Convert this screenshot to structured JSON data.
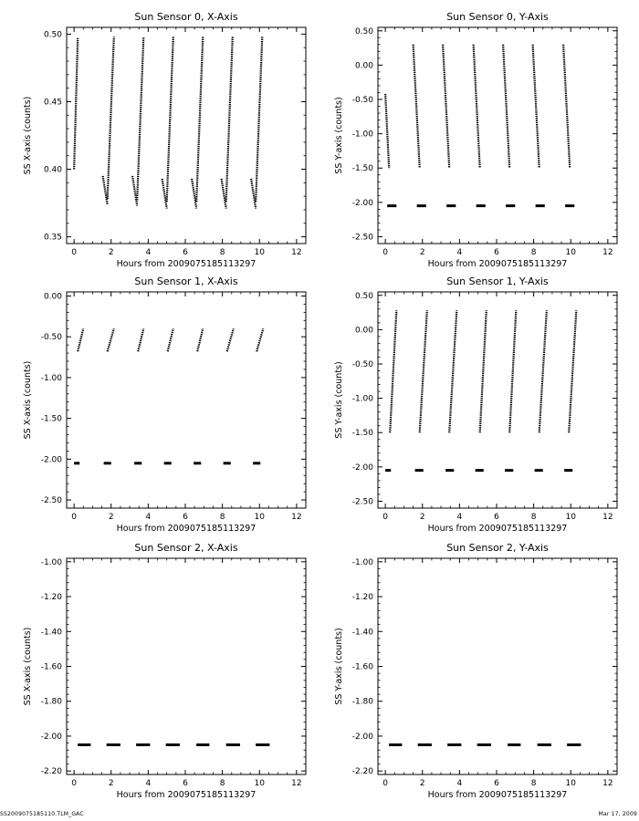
{
  "footer": {
    "filename": "SS2009075185110.TLM_GAC",
    "date": "Mar 17, 2009"
  },
  "chart_data": [
    {
      "type": "scatter",
      "title": "Sun Sensor 0, X-Axis",
      "xlabel": "Hours from 2009075185113297",
      "ylabel": "SS X-axis (counts)",
      "xlim": [
        -0.4,
        12.5
      ],
      "ylim": [
        0.345,
        0.505
      ],
      "xticks": [
        0,
        2,
        4,
        6,
        8,
        10,
        12
      ],
      "yticks": [
        0.35,
        0.4,
        0.45,
        0.5
      ],
      "ytick_labels": [
        "0.35",
        "0.40",
        "0.45",
        "0.50"
      ],
      "segments": [
        {
          "x": [
            0.0,
            0.2
          ],
          "y": [
            0.4,
            0.497
          ]
        },
        {
          "x": [
            1.55,
            1.8
          ],
          "y": [
            0.395,
            0.374
          ]
        },
        {
          "x": [
            1.8,
            2.15
          ],
          "y": [
            0.378,
            0.498
          ]
        },
        {
          "x": [
            3.15,
            3.4
          ],
          "y": [
            0.395,
            0.373
          ]
        },
        {
          "x": [
            3.4,
            3.75
          ],
          "y": [
            0.377,
            0.498
          ]
        },
        {
          "x": [
            4.75,
            5.0
          ],
          "y": [
            0.393,
            0.371
          ]
        },
        {
          "x": [
            5.0,
            5.35
          ],
          "y": [
            0.376,
            0.498
          ]
        },
        {
          "x": [
            6.35,
            6.6
          ],
          "y": [
            0.393,
            0.371
          ]
        },
        {
          "x": [
            6.6,
            6.95
          ],
          "y": [
            0.376,
            0.498
          ]
        },
        {
          "x": [
            7.95,
            8.2
          ],
          "y": [
            0.393,
            0.371
          ]
        },
        {
          "x": [
            8.2,
            8.55
          ],
          "y": [
            0.376,
            0.498
          ]
        },
        {
          "x": [
            9.55,
            9.8
          ],
          "y": [
            0.393,
            0.371
          ]
        },
        {
          "x": [
            9.8,
            10.15
          ],
          "y": [
            0.376,
            0.498
          ]
        }
      ]
    },
    {
      "type": "scatter",
      "title": "Sun Sensor 0, Y-Axis",
      "xlabel": "Hours from 2009075185113297",
      "ylabel": "SS Y-axis (counts)",
      "xlim": [
        -0.4,
        12.5
      ],
      "ylim": [
        -2.6,
        0.55
      ],
      "xticks": [
        0,
        2,
        4,
        6,
        8,
        10,
        12
      ],
      "yticks": [
        -2.5,
        -2.0,
        -1.5,
        -1.0,
        -0.5,
        0.0,
        0.5
      ],
      "ytick_labels": [
        "-2.50",
        "-2.00",
        "-1.50",
        "-1.00",
        "-0.50",
        "0.00",
        "0.50"
      ],
      "segments": [
        {
          "x": [
            0.0,
            0.2
          ],
          "y": [
            -0.42,
            -1.5
          ]
        },
        {
          "x": [
            1.5,
            1.85
          ],
          "y": [
            0.3,
            -1.5
          ]
        },
        {
          "x": [
            3.1,
            3.45
          ],
          "y": [
            0.3,
            -1.5
          ]
        },
        {
          "x": [
            4.75,
            5.1
          ],
          "y": [
            0.3,
            -1.5
          ]
        },
        {
          "x": [
            6.35,
            6.7
          ],
          "y": [
            0.3,
            -1.5
          ]
        },
        {
          "x": [
            7.95,
            8.3
          ],
          "y": [
            0.3,
            -1.5
          ]
        },
        {
          "x": [
            9.6,
            9.95
          ],
          "y": [
            0.3,
            -1.5
          ]
        },
        {
          "x": [
            0.1,
            0.6
          ],
          "y": [
            -2.05,
            -2.05
          ]
        },
        {
          "x": [
            1.7,
            2.2
          ],
          "y": [
            -2.05,
            -2.05
          ]
        },
        {
          "x": [
            3.3,
            3.8
          ],
          "y": [
            -2.05,
            -2.05
          ]
        },
        {
          "x": [
            4.9,
            5.4
          ],
          "y": [
            -2.05,
            -2.05
          ]
        },
        {
          "x": [
            6.5,
            7.0
          ],
          "y": [
            -2.05,
            -2.05
          ]
        },
        {
          "x": [
            8.1,
            8.6
          ],
          "y": [
            -2.05,
            -2.05
          ]
        },
        {
          "x": [
            9.7,
            10.2
          ],
          "y": [
            -2.05,
            -2.05
          ]
        }
      ]
    },
    {
      "type": "scatter",
      "title": "Sun Sensor 1, X-Axis",
      "xlabel": "Hours from 2009075185113297",
      "ylabel": "SS X-axis (counts)",
      "xlim": [
        -0.4,
        12.5
      ],
      "ylim": [
        -2.6,
        0.05
      ],
      "xticks": [
        0,
        2,
        4,
        6,
        8,
        10,
        12
      ],
      "yticks": [
        -2.5,
        -2.0,
        -1.5,
        -1.0,
        -0.5,
        0.0
      ],
      "ytick_labels": [
        "-2.50",
        "-2.00",
        "-1.50",
        "-1.00",
        "-0.50",
        "0.00"
      ],
      "segments": [
        {
          "x": [
            0.2,
            0.5
          ],
          "y": [
            -0.68,
            -0.4
          ]
        },
        {
          "x": [
            1.8,
            2.15
          ],
          "y": [
            -0.68,
            -0.4
          ]
        },
        {
          "x": [
            3.45,
            3.75
          ],
          "y": [
            -0.68,
            -0.4
          ]
        },
        {
          "x": [
            5.05,
            5.35
          ],
          "y": [
            -0.68,
            -0.4
          ]
        },
        {
          "x": [
            6.65,
            6.95
          ],
          "y": [
            -0.68,
            -0.4
          ]
        },
        {
          "x": [
            8.25,
            8.6
          ],
          "y": [
            -0.68,
            -0.4
          ]
        },
        {
          "x": [
            9.85,
            10.2
          ],
          "y": [
            -0.68,
            -0.4
          ]
        },
        {
          "x": [
            0.0,
            0.3
          ],
          "y": [
            -2.05,
            -2.05
          ]
        },
        {
          "x": [
            1.6,
            2.0
          ],
          "y": [
            -2.05,
            -2.05
          ]
        },
        {
          "x": [
            3.25,
            3.65
          ],
          "y": [
            -2.05,
            -2.05
          ]
        },
        {
          "x": [
            4.85,
            5.25
          ],
          "y": [
            -2.05,
            -2.05
          ]
        },
        {
          "x": [
            6.45,
            6.85
          ],
          "y": [
            -2.05,
            -2.05
          ]
        },
        {
          "x": [
            8.05,
            8.45
          ],
          "y": [
            -2.05,
            -2.05
          ]
        },
        {
          "x": [
            9.65,
            10.05
          ],
          "y": [
            -2.05,
            -2.05
          ]
        }
      ]
    },
    {
      "type": "scatter",
      "title": "Sun Sensor 1, Y-Axis",
      "xlabel": "Hours from 2009075185113297",
      "ylabel": "SS Y-axis (counts)",
      "xlim": [
        -0.4,
        12.5
      ],
      "ylim": [
        -2.6,
        0.55
      ],
      "xticks": [
        0,
        2,
        4,
        6,
        8,
        10,
        12
      ],
      "yticks": [
        -2.5,
        -2.0,
        -1.5,
        -1.0,
        -0.5,
        0.0,
        0.5
      ],
      "ytick_labels": [
        "-2.50",
        "-2.00",
        "-1.50",
        "-1.00",
        "-0.50",
        "0.00",
        "0.50"
      ],
      "segments": [
        {
          "x": [
            0.25,
            0.6
          ],
          "y": [
            -1.5,
            0.28
          ]
        },
        {
          "x": [
            1.85,
            2.25
          ],
          "y": [
            -1.5,
            0.28
          ]
        },
        {
          "x": [
            3.45,
            3.85
          ],
          "y": [
            -1.5,
            0.28
          ]
        },
        {
          "x": [
            5.1,
            5.45
          ],
          "y": [
            -1.5,
            0.28
          ]
        },
        {
          "x": [
            6.7,
            7.05
          ],
          "y": [
            -1.5,
            0.28
          ]
        },
        {
          "x": [
            8.3,
            8.7
          ],
          "y": [
            -1.5,
            0.28
          ]
        },
        {
          "x": [
            9.9,
            10.3
          ],
          "y": [
            -1.5,
            0.28
          ]
        },
        {
          "x": [
            0.0,
            0.3
          ],
          "y": [
            -2.05,
            -2.05
          ]
        },
        {
          "x": [
            1.6,
            2.05
          ],
          "y": [
            -2.05,
            -2.05
          ]
        },
        {
          "x": [
            3.25,
            3.7
          ],
          "y": [
            -2.05,
            -2.05
          ]
        },
        {
          "x": [
            4.85,
            5.3
          ],
          "y": [
            -2.05,
            -2.05
          ]
        },
        {
          "x": [
            6.45,
            6.9
          ],
          "y": [
            -2.05,
            -2.05
          ]
        },
        {
          "x": [
            8.05,
            8.5
          ],
          "y": [
            -2.05,
            -2.05
          ]
        },
        {
          "x": [
            9.65,
            10.1
          ],
          "y": [
            -2.05,
            -2.05
          ]
        }
      ]
    },
    {
      "type": "scatter",
      "title": "Sun Sensor 2, X-Axis",
      "xlabel": "Hours from 2009075185113297",
      "ylabel": "SS X-axis (counts)",
      "xlim": [
        -0.4,
        12.5
      ],
      "ylim": [
        -2.22,
        -0.98
      ],
      "xticks": [
        0,
        2,
        4,
        6,
        8,
        10,
        12
      ],
      "yticks": [
        -2.2,
        -2.0,
        -1.8,
        -1.6,
        -1.4,
        -1.2,
        -1.0
      ],
      "ytick_labels": [
        "-2.20",
        "-2.00",
        "-1.80",
        "-1.60",
        "-1.40",
        "-1.20",
        "-1.00"
      ],
      "segments": [
        {
          "x": [
            0.2,
            0.9
          ],
          "y": [
            -2.05,
            -2.05
          ]
        },
        {
          "x": [
            1.75,
            2.5
          ],
          "y": [
            -2.05,
            -2.05
          ]
        },
        {
          "x": [
            3.35,
            4.1
          ],
          "y": [
            -2.05,
            -2.05
          ]
        },
        {
          "x": [
            4.95,
            5.7
          ],
          "y": [
            -2.05,
            -2.05
          ]
        },
        {
          "x": [
            6.6,
            7.3
          ],
          "y": [
            -2.05,
            -2.05
          ]
        },
        {
          "x": [
            8.2,
            8.95
          ],
          "y": [
            -2.05,
            -2.05
          ]
        },
        {
          "x": [
            9.8,
            10.55
          ],
          "y": [
            -2.05,
            -2.05
          ]
        }
      ]
    },
    {
      "type": "scatter",
      "title": "Sun Sensor 2, Y-Axis",
      "xlabel": "Hours from 2009075185113297",
      "ylabel": "SS Y-axis (counts)",
      "xlim": [
        -0.4,
        12.5
      ],
      "ylim": [
        -2.22,
        -0.98
      ],
      "xticks": [
        0,
        2,
        4,
        6,
        8,
        10,
        12
      ],
      "yticks": [
        -2.2,
        -2.0,
        -1.8,
        -1.6,
        -1.4,
        -1.2,
        -1.0
      ],
      "ytick_labels": [
        "-2.20",
        "-2.00",
        "-1.80",
        "-1.60",
        "-1.40",
        "-1.20",
        "-1.00"
      ],
      "segments": [
        {
          "x": [
            0.2,
            0.9
          ],
          "y": [
            -2.05,
            -2.05
          ]
        },
        {
          "x": [
            1.75,
            2.5
          ],
          "y": [
            -2.05,
            -2.05
          ]
        },
        {
          "x": [
            3.35,
            4.1
          ],
          "y": [
            -2.05,
            -2.05
          ]
        },
        {
          "x": [
            4.95,
            5.7
          ],
          "y": [
            -2.05,
            -2.05
          ]
        },
        {
          "x": [
            6.6,
            7.3
          ],
          "y": [
            -2.05,
            -2.05
          ]
        },
        {
          "x": [
            8.2,
            8.95
          ],
          "y": [
            -2.05,
            -2.05
          ]
        },
        {
          "x": [
            9.8,
            10.55
          ],
          "y": [
            -2.05,
            -2.05
          ]
        }
      ]
    }
  ]
}
